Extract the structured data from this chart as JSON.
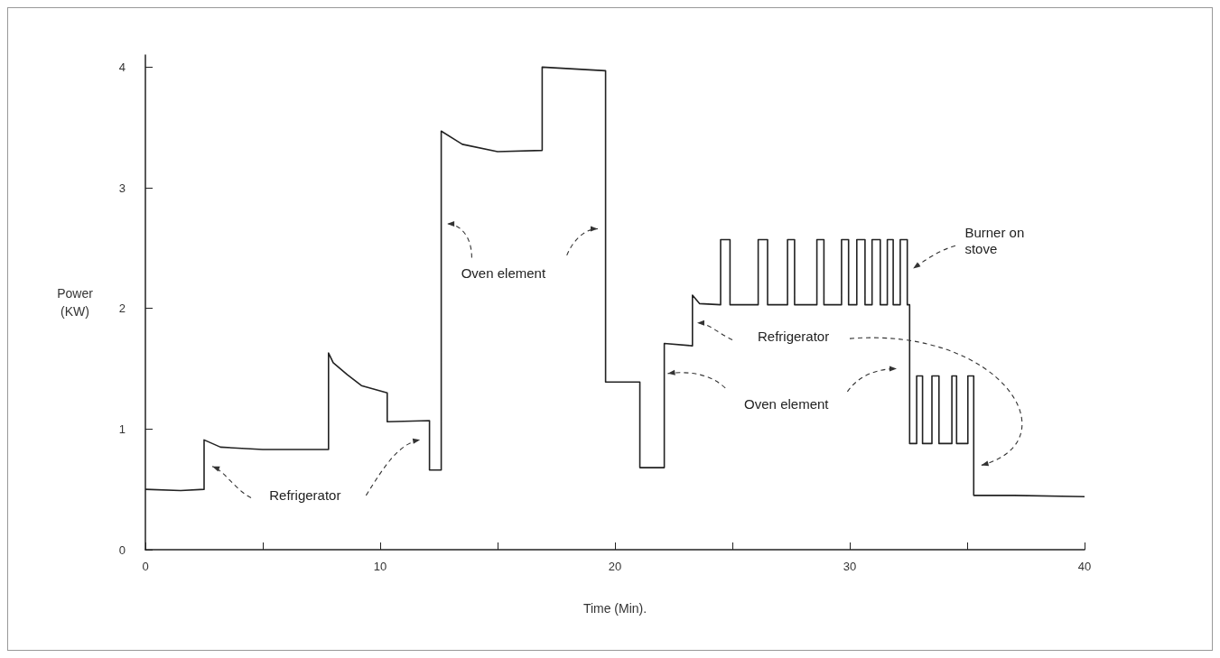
{
  "chart_data": {
    "type": "line",
    "xlabel": "Time (Min).",
    "ylabel": "Power\n(KW)",
    "x": [
      0,
      1.5,
      2.5,
      2.5,
      3.2,
      5,
      7.8,
      7.8,
      8.0,
      8.6,
      9.2,
      10.3,
      10.3,
      12.1,
      12.1,
      12.6,
      12.6,
      13.5,
      15,
      16.9,
      16.9,
      19.6,
      19.6,
      21.06,
      21.06,
      22.1,
      22.1,
      23.3,
      23.3,
      23.6,
      24.5,
      24.5,
      24.9,
      24.9,
      26.1,
      26.1,
      26.5,
      26.5,
      27.35,
      27.35,
      27.65,
      27.65,
      28.6,
      28.6,
      28.9,
      28.9,
      29.65,
      29.65,
      29.95,
      29.95,
      30.3,
      30.3,
      30.65,
      30.65,
      30.95,
      30.95,
      31.3,
      31.3,
      31.6,
      31.6,
      31.85,
      31.85,
      32.15,
      32.15,
      32.45,
      32.45,
      32.55,
      32.55,
      32.85,
      32.85,
      33.1,
      33.1,
      33.5,
      33.5,
      33.8,
      33.8,
      34.35,
      34.35,
      34.55,
      34.55,
      35.03,
      35.03,
      35.28,
      35.28,
      37,
      40
    ],
    "series": [
      {
        "color": "#222222",
        "values": [
          0.5,
          0.49,
          0.5,
          0.91,
          0.85,
          0.83,
          0.83,
          1.63,
          1.55,
          1.45,
          1.36,
          1.3,
          1.06,
          1.07,
          0.66,
          0.66,
          3.47,
          3.36,
          3.3,
          3.31,
          4.0,
          3.97,
          1.39,
          1.39,
          0.68,
          0.68,
          1.71,
          1.69,
          2.11,
          2.04,
          2.03,
          2.57,
          2.57,
          2.03,
          2.03,
          2.57,
          2.57,
          2.03,
          2.03,
          2.57,
          2.57,
          2.03,
          2.03,
          2.57,
          2.57,
          2.03,
          2.03,
          2.57,
          2.57,
          2.03,
          2.03,
          2.57,
          2.57,
          2.03,
          2.03,
          2.57,
          2.57,
          2.03,
          2.03,
          2.57,
          2.57,
          2.03,
          2.03,
          2.57,
          2.57,
          2.03,
          2.03,
          0.88,
          0.88,
          1.44,
          1.44,
          0.88,
          0.88,
          1.44,
          1.44,
          0.88,
          0.88,
          1.44,
          1.44,
          0.88,
          0.88,
          1.44,
          1.44,
          0.45,
          0.45,
          0.44
        ]
      }
    ],
    "xlim": [
      0,
      40
    ],
    "xticks": [
      0,
      {
        "value": 5,
        "label": null
      },
      10,
      {
        "value": 15,
        "label": null
      },
      20,
      {
        "value": 25,
        "label": null
      },
      30,
      {
        "value": 35,
        "label": null
      },
      40
    ],
    "ylim": [
      0,
      4.1
    ],
    "yticks": [
      0,
      1,
      2,
      3,
      4
    ],
    "annotations": [
      "Refrigerator",
      "Oven element",
      "Refrigerator",
      "Oven element",
      "Burner on\nstove"
    ],
    "grid": false,
    "marker": "none",
    "line_style": "solid"
  }
}
